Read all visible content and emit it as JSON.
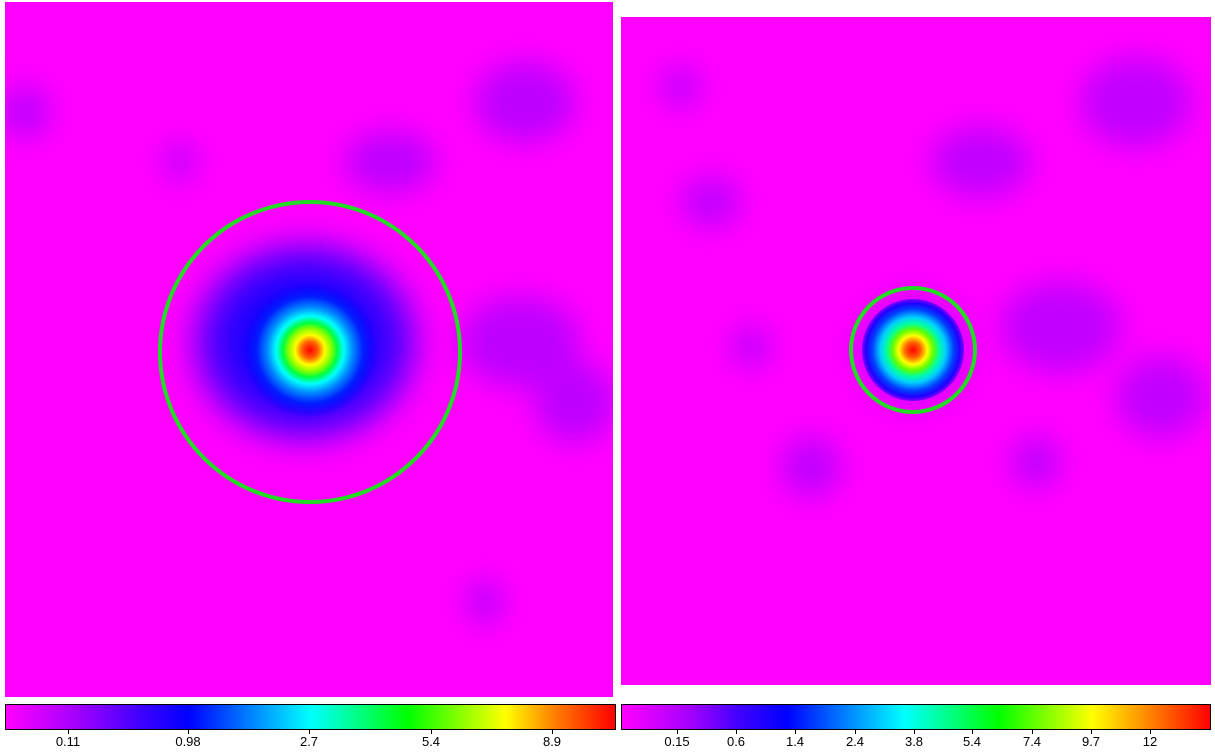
{
  "panels": [
    {
      "name": "left",
      "colormap": [
        "#ff00ff",
        "#c000ff",
        "#6000ff",
        "#0000ff",
        "#0080ff",
        "#00ffff",
        "#00ff80",
        "#00ff00",
        "#80ff00",
        "#ffff00",
        "#ff8000",
        "#ff0000"
      ],
      "circle_color": "#22dd22",
      "colorbar_ticks": [
        "0.11",
        "0.98",
        "2.7",
        "5.4",
        "8.9"
      ]
    },
    {
      "name": "right",
      "colormap": [
        "#ff00ff",
        "#c000ff",
        "#6000ff",
        "#0000ff",
        "#0080ff",
        "#00ffff",
        "#00ff80",
        "#00ff00",
        "#80ff00",
        "#ffff00",
        "#ff8000",
        "#ff0000"
      ],
      "circle_color": "#22dd22",
      "colorbar_ticks": [
        "0.15",
        "0.6",
        "1.4",
        "2.4",
        "3.8",
        "5.4",
        "7.4",
        "9.7",
        "12"
      ]
    }
  ]
}
